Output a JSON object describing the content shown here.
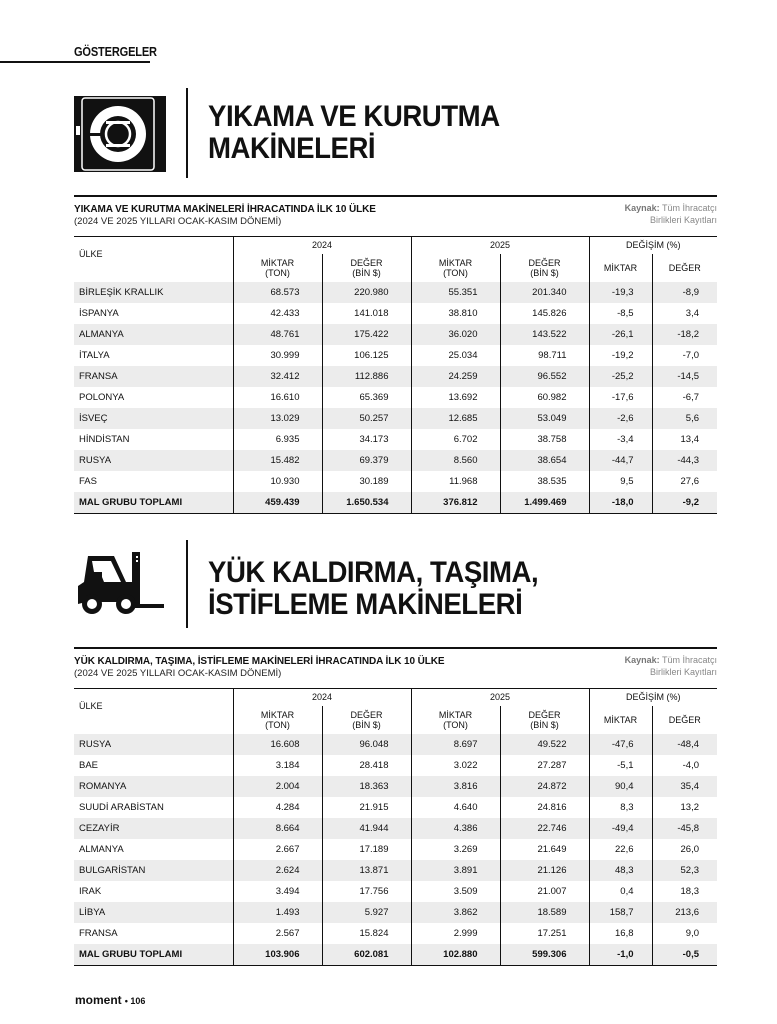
{
  "section_label": "GÖSTERGELER",
  "sections": [
    {
      "icon": "washing-machine-icon",
      "title_line1": "YIKAMA VE KURUTMA",
      "title_line2": "MAKİNELERİ",
      "table": {
        "title": "YIKAMA VE KURUTMA MAKİNELERİ İHRACATINDA İLK 10 ÜLKE",
        "subtitle": "(2024 VE 2025 YILLARI OCAK-KASIM DÖNEMİ)",
        "source_label": "Kaynak:",
        "source_text1": "Tüm İhracatçı",
        "source_text2": "Birlikleri Kayıtları",
        "headers": {
          "country": "ÜLKE",
          "y2024": "2024",
          "y2025": "2025",
          "change": "DEĞİŞİM (%)",
          "qty": "MİKTAR",
          "qty_unit": "(TON)",
          "val": "DEĞER",
          "val_unit": "(BİN $)",
          "ch_qty": "MİKTAR",
          "ch_val": "DEĞER"
        },
        "rows": [
          [
            "BİRLEŞİK KRALLIK",
            "68.573",
            "220.980",
            "55.351",
            "201.340",
            "-19,3",
            "-8,9"
          ],
          [
            "İSPANYA",
            "42.433",
            "141.018",
            "38.810",
            "145.826",
            "-8,5",
            "3,4"
          ],
          [
            "ALMANYA",
            "48.761",
            "175.422",
            "36.020",
            "143.522",
            "-26,1",
            "-18,2"
          ],
          [
            "İTALYA",
            "30.999",
            "106.125",
            "25.034",
            "98.711",
            "-19,2",
            "-7,0"
          ],
          [
            "FRANSA",
            "32.412",
            "112.886",
            "24.259",
            "96.552",
            "-25,2",
            "-14,5"
          ],
          [
            "POLONYA",
            "16.610",
            "65.369",
            "13.692",
            "60.982",
            "-17,6",
            "-6,7"
          ],
          [
            "İSVEÇ",
            "13.029",
            "50.257",
            "12.685",
            "53.049",
            "-2,6",
            "5,6"
          ],
          [
            "HİNDİSTAN",
            "6.935",
            "34.173",
            "6.702",
            "38.758",
            "-3,4",
            "13,4"
          ],
          [
            "RUSYA",
            "15.482",
            "69.379",
            "8.560",
            "38.654",
            "-44,7",
            "-44,3"
          ],
          [
            "FAS",
            "10.930",
            "30.189",
            "11.968",
            "38.535",
            "9,5",
            "27,6"
          ]
        ],
        "total": [
          "MAL GRUBU TOPLAMI",
          "459.439",
          "1.650.534",
          "376.812",
          "1.499.469",
          "-18,0",
          "-9,2"
        ]
      }
    },
    {
      "icon": "forklift-icon",
      "title_line1": "YÜK KALDIRMA, TAŞIMA,",
      "title_line2": "İSTİFLEME MAKİNELERİ",
      "table": {
        "title": "YÜK KALDIRMA, TAŞIMA, İSTİFLEME MAKİNELERİ İHRACATINDA İLK 10 ÜLKE",
        "subtitle": "(2024 VE 2025 YILLARI OCAK-KASIM DÖNEMİ)",
        "source_label": "Kaynak:",
        "source_text1": "Tüm İhracatçı",
        "source_text2": "Birlikleri Kayıtları",
        "headers": {
          "country": "ÜLKE",
          "y2024": "2024",
          "y2025": "2025",
          "change": "DEĞİŞİM (%)",
          "qty": "MİKTAR",
          "qty_unit": "(TON)",
          "val": "DEĞER",
          "val_unit": "(BİN $)",
          "ch_qty": "MİKTAR",
          "ch_val": "DEĞER"
        },
        "rows": [
          [
            "RUSYA",
            "16.608",
            "96.048",
            "8.697",
            "49.522",
            "-47,6",
            "-48,4"
          ],
          [
            "BAE",
            "3.184",
            "28.418",
            "3.022",
            "27.287",
            "-5,1",
            "-4,0"
          ],
          [
            "ROMANYA",
            "2.004",
            "18.363",
            "3.816",
            "24.872",
            "90,4",
            "35,4"
          ],
          [
            "SUUDİ ARABİSTAN",
            "4.284",
            "21.915",
            "4.640",
            "24.816",
            "8,3",
            "13,2"
          ],
          [
            "CEZAYİR",
            "8.664",
            "41.944",
            "4.386",
            "22.746",
            "-49,4",
            "-45,8"
          ],
          [
            "ALMANYA",
            "2.667",
            "17.189",
            "3.269",
            "21.649",
            "22,6",
            "26,0"
          ],
          [
            "BULGARİSTAN",
            "2.624",
            "13.871",
            "3.891",
            "21.126",
            "48,3",
            "52,3"
          ],
          [
            "IRAK",
            "3.494",
            "17.756",
            "3.509",
            "21.007",
            "0,4",
            "18,3"
          ],
          [
            "LİBYA",
            "1.493",
            "5.927",
            "3.862",
            "18.589",
            "158,7",
            "213,6"
          ],
          [
            "FRANSA",
            "2.567",
            "15.824",
            "2.999",
            "17.251",
            "16,8",
            "9,0"
          ]
        ],
        "total": [
          "MAL GRUBU TOPLAMI",
          "103.906",
          "602.081",
          "102.880",
          "599.306",
          "-1,0",
          "-0,5"
        ]
      }
    }
  ],
  "footer": {
    "brand": "moment",
    "page": "• 106"
  }
}
